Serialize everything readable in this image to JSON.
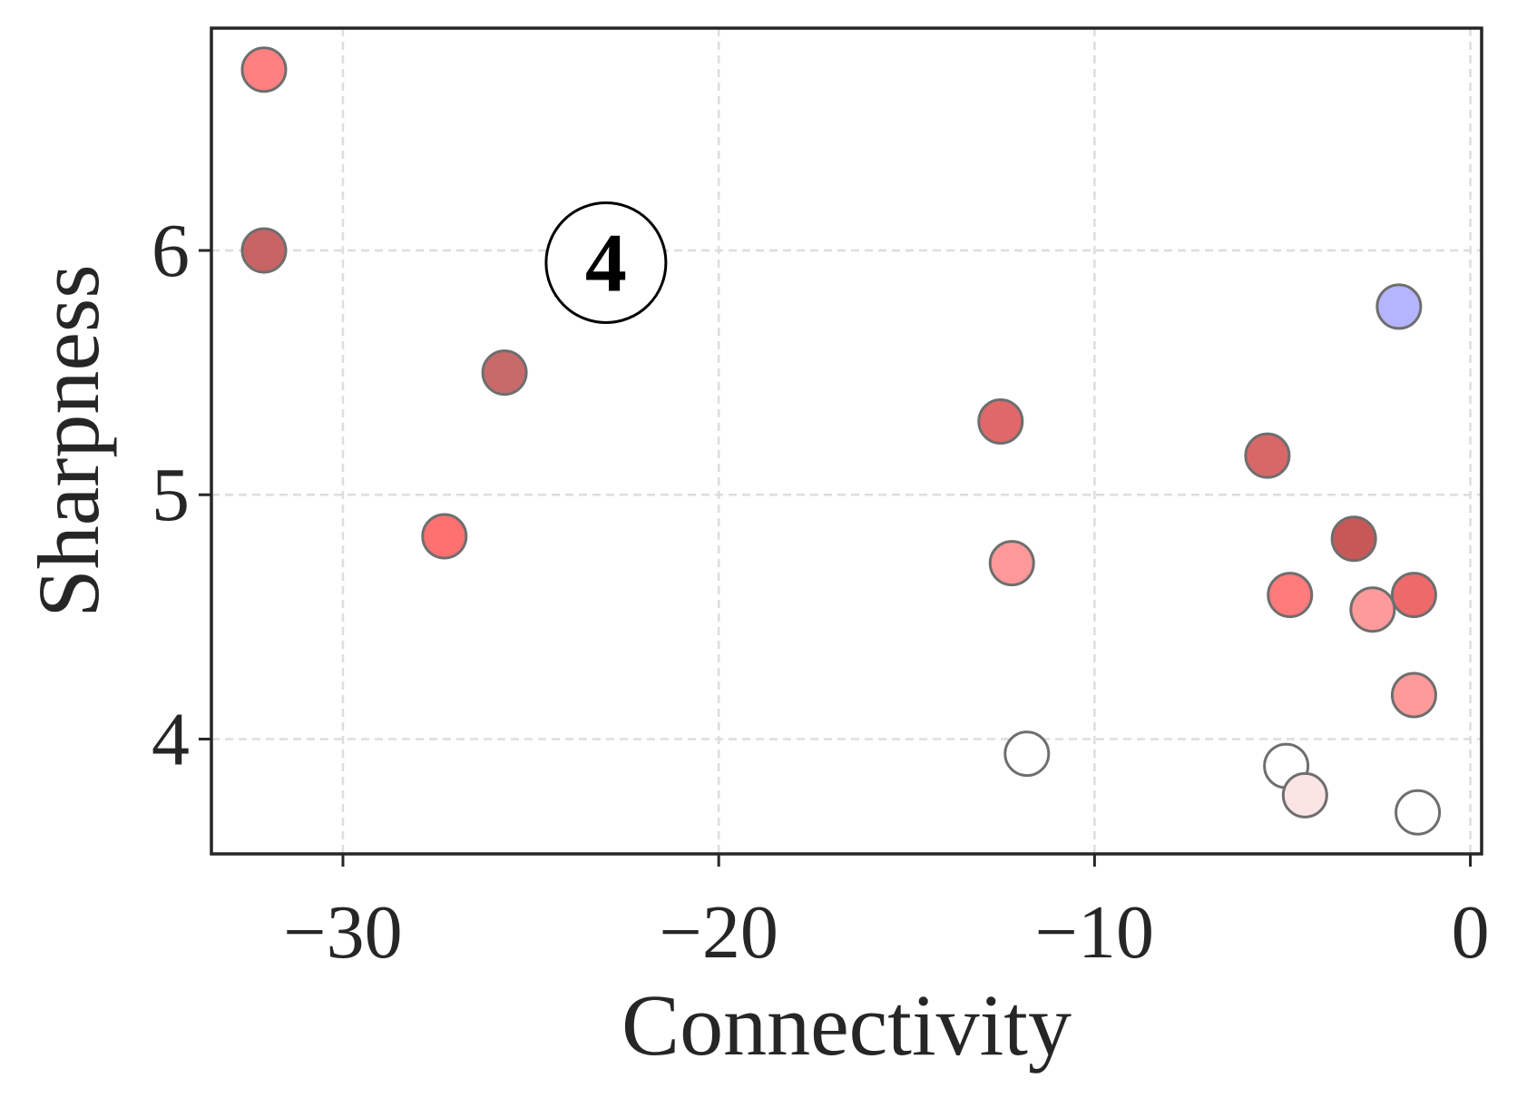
{
  "chart_data": {
    "type": "scatter",
    "xlabel": "Connectivity",
    "ylabel": "Sharpness",
    "xlim": [
      -33.5,
      0.3
    ],
    "ylim": [
      3.53,
      6.91
    ],
    "xticks": [
      -30,
      -20,
      -10,
      0
    ],
    "xtick_labels": [
      "−30",
      "−20",
      "−10",
      "0"
    ],
    "yticks": [
      4,
      5,
      6
    ],
    "ytick_labels": [
      "4",
      "5",
      "6"
    ],
    "grid": true,
    "annotation": "4",
    "annotation_position": {
      "x": -23.0,
      "y": 5.95
    },
    "points": [
      {
        "x": -32.1,
        "y": 6.74,
        "color": "#ff8080"
      },
      {
        "x": -32.1,
        "y": 6.0,
        "color": "#c86464"
      },
      {
        "x": -25.7,
        "y": 5.5,
        "color": "#c86a6a"
      },
      {
        "x": -27.3,
        "y": 4.83,
        "color": "#ff7070"
      },
      {
        "x": -12.5,
        "y": 5.3,
        "color": "#e06868"
      },
      {
        "x": -12.2,
        "y": 4.72,
        "color": "#ff9898"
      },
      {
        "x": -11.8,
        "y": 3.94,
        "color": "#ffffff"
      },
      {
        "x": -5.4,
        "y": 5.16,
        "color": "#d86868"
      },
      {
        "x": -4.8,
        "y": 4.59,
        "color": "#ff7a7a"
      },
      {
        "x": -3.1,
        "y": 4.82,
        "color": "#c85858"
      },
      {
        "x": -2.6,
        "y": 4.53,
        "color": "#ff9a9a"
      },
      {
        "x": -1.9,
        "y": 5.77,
        "color": "#b4b4ff"
      },
      {
        "x": -1.5,
        "y": 4.59,
        "color": "#ee6a6a"
      },
      {
        "x": -1.5,
        "y": 4.18,
        "color": "#ff9a9a"
      },
      {
        "x": -4.9,
        "y": 3.89,
        "color": "#ffffff"
      },
      {
        "x": -4.4,
        "y": 3.77,
        "color": "#fbe4e4"
      },
      {
        "x": -1.4,
        "y": 3.7,
        "color": "#ffffff"
      }
    ]
  }
}
